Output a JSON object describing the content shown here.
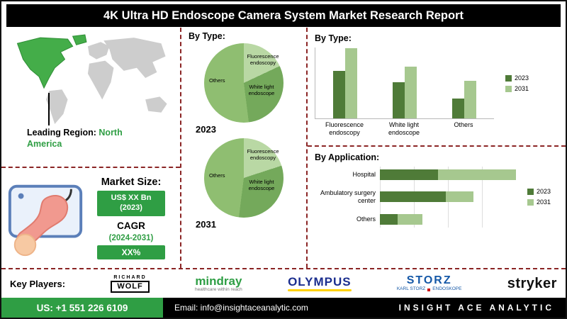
{
  "header": {
    "title": "4K Ultra HD Endoscope Camera System Market Research Report"
  },
  "left": {
    "leading_region_label": "Leading Region:",
    "leading_region_value": "North America",
    "market_size_heading": "Market Size:",
    "market_size_value": "US$ XX Bn",
    "market_size_year": "(2023)",
    "cagr_label": "CAGR",
    "cagr_period": "(2024-2031)",
    "cagr_value": "XX%"
  },
  "sections": {
    "pies_heading": "By Type:",
    "bar_heading": "By Type:",
    "application_heading": "By Application:"
  },
  "chart_data": [
    {
      "id": "pie_2023",
      "type": "pie",
      "year_label": "2023",
      "labels": [
        "Fluorescence endoscopy",
        "White light endoscope",
        "Others"
      ],
      "values": [
        18,
        30,
        52
      ],
      "colors": [
        "#b9d8a4",
        "#74a95b",
        "#8fbe71"
      ]
    },
    {
      "id": "pie_2031",
      "type": "pie",
      "year_label": "2031",
      "labels": [
        "Fluorescence endoscopy",
        "White light endoscope",
        "Others"
      ],
      "values": [
        20,
        32,
        48
      ],
      "colors": [
        "#b9d8a4",
        "#74a95b",
        "#8fbe71"
      ]
    },
    {
      "id": "by_type_bar",
      "type": "bar",
      "title": "By Type:",
      "categories": [
        "Fluorescence endoscopy",
        "White light endoscope",
        "Others"
      ],
      "series": [
        {
          "name": "2023",
          "values": [
            60,
            45,
            25
          ]
        },
        {
          "name": "2031",
          "values": [
            88,
            65,
            47
          ]
        }
      ],
      "series_colors": [
        "#4f7b38",
        "#a6c88f"
      ],
      "legend_position": "right",
      "grid": false
    },
    {
      "id": "by_application",
      "type": "stacked-bar-horizontal",
      "title": "By Application:",
      "categories": [
        "Hospital",
        "Ambulatory surgery center",
        "Others"
      ],
      "series": [
        {
          "name": "2023",
          "values": [
            30,
            34,
            9
          ]
        },
        {
          "name": "2031",
          "values": [
            40,
            14,
            13
          ]
        }
      ],
      "series_colors": [
        "#4f7b38",
        "#a6c88f"
      ],
      "legend_position": "right",
      "grid": true
    }
  ],
  "key_players": {
    "label": "Key Players:",
    "richard_wolf_top": "RICHARD",
    "richard_wolf_box": "WOLF",
    "mindray_name": "mindray",
    "mindray_tagline": "healthcare within reach",
    "olympus_name": "OLYMPUS",
    "storz_name": "STORZ",
    "storz_sub_left": "KARL STORZ",
    "storz_sub_right": "ENDOSKOPE",
    "stryker_name": "stryker"
  },
  "footer": {
    "phone": "US: +1 551 226 6109",
    "email": "Email: info@insightaceanalytic.com",
    "brand": "INSIGHT ACE ANALYTIC"
  },
  "colors": {
    "accent_green": "#2f9e44",
    "dark_series_green": "#4f7b38",
    "light_series_green": "#a6c88f",
    "dashed_border_red": "#8b2525",
    "olympus_blue": "#1b2e8e",
    "olympus_yellow": "#ffd200",
    "storz_blue": "#1558a7",
    "mindray_green": "#2e9e44"
  }
}
